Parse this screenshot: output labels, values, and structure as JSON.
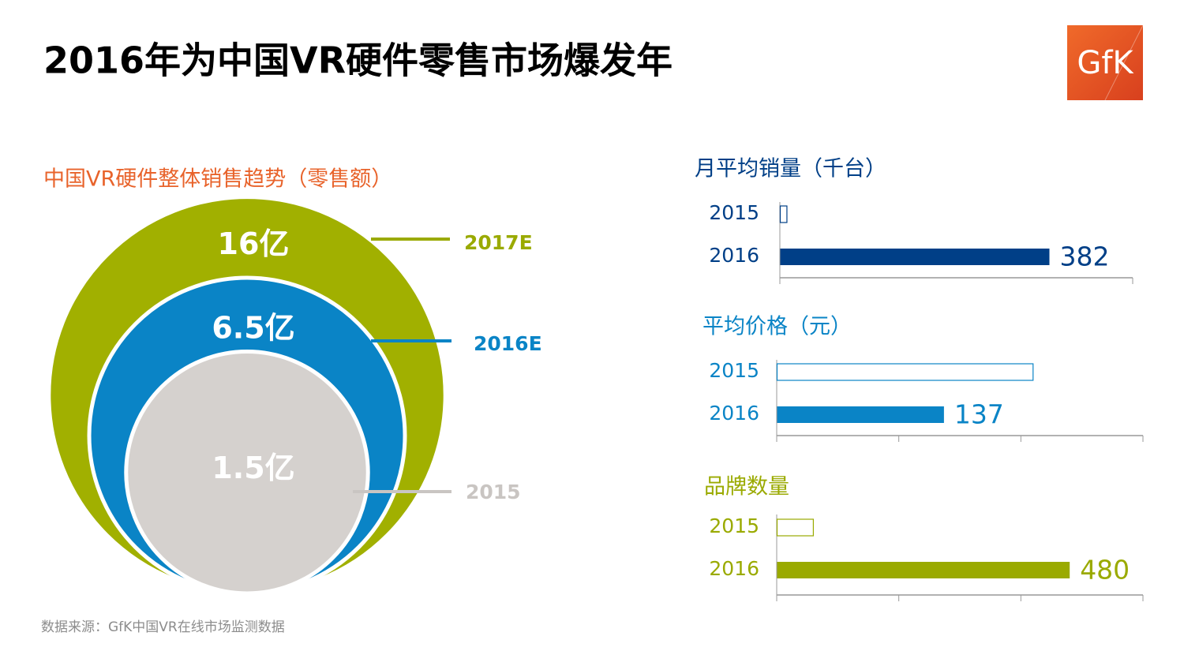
{
  "header": {
    "title": "2016年为中国VR硬件零售市场爆发年",
    "logo": "GfK"
  },
  "footer": {
    "source": "数据来源：GfK中国VR在线市场监测数据"
  },
  "chart_data": [
    {
      "type": "bubble",
      "title": "中国VR硬件整体销售趋势（零售额）",
      "categories": [
        "2017E",
        "2016E",
        "2015"
      ],
      "values": [
        16,
        6.5,
        1.5
      ],
      "value_labels": [
        "16亿",
        "6.5亿",
        "1.5亿"
      ],
      "colors": [
        "#a1b000",
        "#0a84c6",
        "#d5d1ce"
      ],
      "label_colors": [
        "#9aaa00",
        "#0a84c6",
        "#c9c5c2"
      ]
    },
    {
      "type": "bar",
      "orientation": "horizontal",
      "title": "月平均销量（千台）",
      "categories": [
        "2015",
        "2016"
      ],
      "values": [
        10,
        382
      ],
      "value_labels": [
        null,
        "382"
      ],
      "color": "#003f87",
      "xlim": [
        0,
        500
      ],
      "xticks": [
        0,
        500
      ]
    },
    {
      "type": "bar",
      "orientation": "horizontal",
      "title": "平均价格（元）",
      "categories": [
        "2015",
        "2016"
      ],
      "values": [
        210,
        137
      ],
      "value_labels": [
        null,
        "137"
      ],
      "color": "#0a84c6",
      "xlim": [
        0,
        300
      ],
      "xticks": [
        0,
        100,
        200,
        300
      ]
    },
    {
      "type": "bar",
      "orientation": "horizontal",
      "title": "品牌数量",
      "categories": [
        "2015",
        "2016"
      ],
      "values": [
        60,
        480
      ],
      "value_labels": [
        null,
        "480"
      ],
      "color": "#9aaa00",
      "xlim": [
        0,
        600
      ],
      "xticks": [
        0,
        200,
        400,
        600
      ]
    }
  ]
}
